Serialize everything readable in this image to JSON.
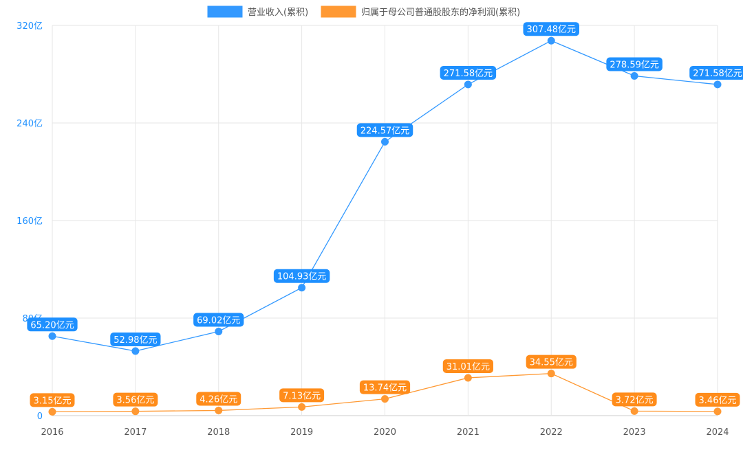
{
  "chart_data": {
    "type": "line",
    "categories": [
      "2016",
      "2017",
      "2018",
      "2019",
      "2020",
      "2021",
      "2022",
      "2023",
      "2024"
    ],
    "series": [
      {
        "name": "营业收入(累积)",
        "color": "#3399ff",
        "values": [
          65.2,
          52.98,
          69.02,
          104.93,
          224.57,
          271.58,
          307.48,
          278.59,
          271.58
        ],
        "labels": [
          "65.20亿元",
          "52.98亿元",
          "69.02亿元",
          "104.93亿元",
          "224.57亿元",
          "271.58亿元",
          "307.48亿元",
          "278.59亿元",
          "271.58亿元"
        ]
      },
      {
        "name": "归属于母公司普通股股东的净利润(累积)",
        "color": "#ff9933",
        "values": [
          3.15,
          3.56,
          4.26,
          7.13,
          13.74,
          31.01,
          34.55,
          3.72,
          3.46
        ],
        "labels": [
          "3.15亿元",
          "3.56亿元",
          "4.26亿元",
          "7.13亿元",
          "13.74亿元",
          "31.01亿元",
          "34.55亿元",
          "3.72亿元",
          "3.46亿元"
        ]
      }
    ],
    "yticks": [
      "0",
      "80亿",
      "160亿",
      "240亿",
      "320亿"
    ],
    "ytick_values": [
      0,
      80,
      160,
      240,
      320
    ],
    "ylim": [
      0,
      320
    ],
    "grid": true,
    "legend": "top-center"
  }
}
